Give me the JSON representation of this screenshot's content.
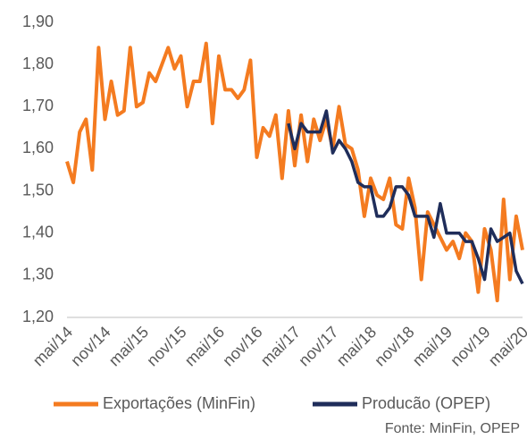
{
  "chart_data": {
    "type": "line",
    "categories": [
      "mai/14",
      null,
      null,
      null,
      null,
      null,
      "nov/14",
      null,
      null,
      null,
      null,
      null,
      "mai/15",
      null,
      null,
      null,
      null,
      null,
      "nov/15",
      null,
      null,
      null,
      null,
      null,
      "mai/16",
      null,
      null,
      null,
      null,
      null,
      "nov/16",
      null,
      null,
      null,
      null,
      null,
      "mai/17",
      null,
      null,
      null,
      null,
      null,
      "nov/17",
      null,
      null,
      null,
      null,
      null,
      "mai/18",
      null,
      null,
      null,
      null,
      null,
      "nov/18",
      null,
      null,
      null,
      null,
      null,
      "mai/19",
      null,
      null,
      null,
      null,
      null,
      "nov/19",
      null,
      null,
      null,
      null,
      null,
      "mai/20"
    ],
    "series": [
      {
        "name": "Exportações (MinFin)",
        "color": "#f47b20",
        "values": [
          1.57,
          1.52,
          1.64,
          1.67,
          1.55,
          1.84,
          1.67,
          1.76,
          1.68,
          1.69,
          1.84,
          1.7,
          1.71,
          1.78,
          1.76,
          1.8,
          1.84,
          1.79,
          1.82,
          1.7,
          1.76,
          1.76,
          1.85,
          1.66,
          1.82,
          1.74,
          1.74,
          1.72,
          1.74,
          1.81,
          1.58,
          1.65,
          1.63,
          1.68,
          1.53,
          1.69,
          1.56,
          1.68,
          1.57,
          1.67,
          1.62,
          1.67,
          1.6,
          1.7,
          1.61,
          1.6,
          1.55,
          1.44,
          1.53,
          1.49,
          1.48,
          1.53,
          1.42,
          1.41,
          1.53,
          1.46,
          1.29,
          1.45,
          1.42,
          1.39,
          1.36,
          1.38,
          1.34,
          1.4,
          1.38,
          1.26,
          1.41,
          1.36,
          1.24,
          1.48,
          1.29,
          1.44,
          1.36
        ]
      },
      {
        "name": "Producão (OPEP)",
        "color": "#1f2d5a",
        "values": [
          null,
          null,
          null,
          null,
          null,
          null,
          null,
          null,
          null,
          null,
          null,
          null,
          null,
          null,
          null,
          null,
          null,
          null,
          null,
          null,
          null,
          null,
          null,
          null,
          null,
          null,
          null,
          null,
          null,
          null,
          null,
          null,
          null,
          null,
          null,
          1.66,
          1.6,
          1.66,
          1.64,
          1.64,
          1.64,
          1.69,
          1.59,
          1.62,
          1.6,
          1.57,
          1.52,
          1.51,
          1.51,
          1.44,
          1.44,
          1.46,
          1.51,
          1.51,
          1.49,
          1.44,
          1.44,
          1.44,
          1.39,
          1.47,
          1.4,
          1.4,
          1.4,
          1.38,
          1.38,
          1.34,
          1.29,
          1.41,
          1.38,
          1.39,
          1.4,
          1.31,
          1.28
        ]
      }
    ],
    "ylim": [
      1.2,
      1.9
    ],
    "yticks": [
      {
        "value": 1.2,
        "label": "1,20"
      },
      {
        "value": 1.3,
        "label": "1,30"
      },
      {
        "value": 1.4,
        "label": "1,40"
      },
      {
        "value": 1.5,
        "label": "1,50"
      },
      {
        "value": 1.6,
        "label": "1,60"
      },
      {
        "value": 1.7,
        "label": "1,70"
      },
      {
        "value": 1.8,
        "label": "1,80"
      },
      {
        "value": 1.9,
        "label": "1,90"
      }
    ],
    "legend": "bottom",
    "source": "Fonte: MinFin, OPEP"
  }
}
